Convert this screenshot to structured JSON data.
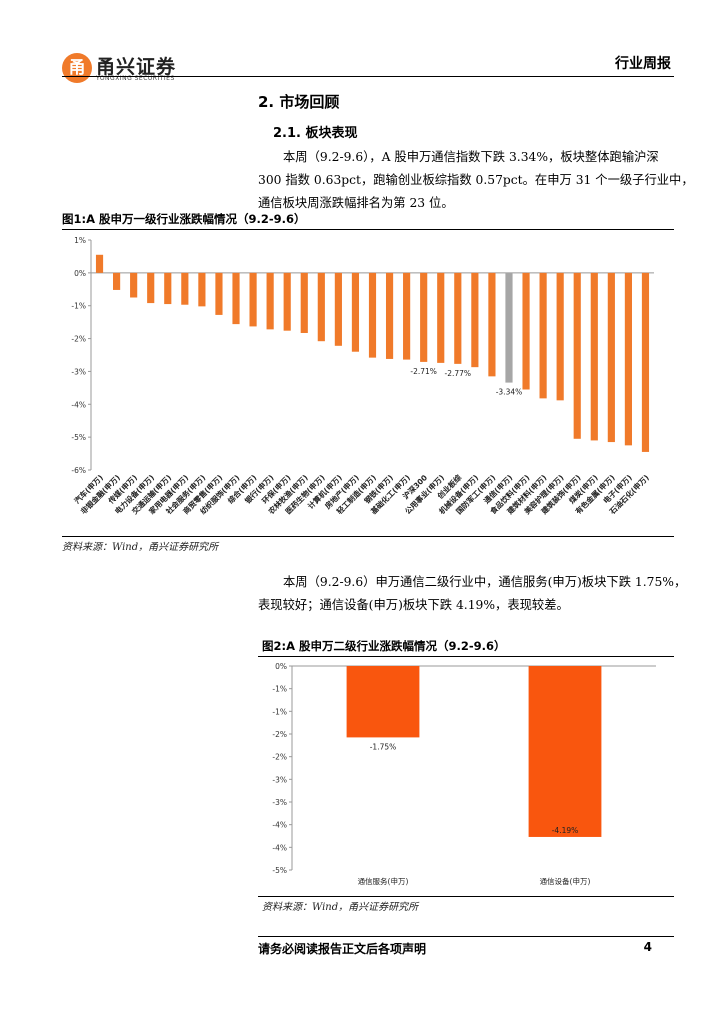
{
  "header": {
    "logo_mark": "甬",
    "brand_name": "甬兴证券",
    "brand_en": "YONGXING SECURITIES",
    "report_type": "行业周报"
  },
  "section": {
    "title": "2. 市场回顾",
    "subtitle": "2.1. 板块表现",
    "para1": [
      "本周（9.2-9.6），A 股申万通信指数下跌 3.34%，板块整体跑输沪深",
      "300 指数 0.63pct，跑输创业板综指数 0.57pct。在申万 31 个一级子行业中，",
      "通信板块周涨跌幅排名为第 23 位。"
    ],
    "para2": [
      "本周（9.2-9.6）申万通信二级行业中，通信服务(申万)板块下跌 1.75%，",
      "表现较好；通信设备(申万)板块下跌 4.19%，表现较差。"
    ]
  },
  "figure1": {
    "title": "图1:A 股申万一级行业涨跌幅情况（9.2-9.6）",
    "source": "资料来源：Wind，甬兴证券研究所"
  },
  "figure2": {
    "title": "图2:A 股申万二级行业涨跌幅情况（9.2-9.6）",
    "source": "资料来源：Wind，甬兴证券研究所"
  },
  "footer": {
    "note": "请务必阅读报告正文后各项声明",
    "page": "4"
  },
  "chart_data": [
    {
      "type": "bar",
      "title": "",
      "ylim": [
        -6,
        1
      ],
      "yticks": [
        "1%",
        "0%",
        "-1%",
        "-2%",
        "-3%",
        "-4%",
        "-5%",
        "-6%"
      ],
      "categories": [
        "汽车(申万)",
        "非银金融(申万)",
        "传媒(申万)",
        "电力设备(申万)",
        "交通运输(申万)",
        "家用电器(申万)",
        "社会服务(申万)",
        "商贸零售(申万)",
        "纺织服饰(申万)",
        "综合(申万)",
        "银行(申万)",
        "环保(申万)",
        "农林牧渔(申万)",
        "医药生物(申万)",
        "计算机(申万)",
        "房地产(申万)",
        "轻工制造(申万)",
        "钢铁(申万)",
        "基础化工(申万)",
        "沪深300",
        "公用事业(申万)",
        "创业板综",
        "机械设备(申万)",
        "国防军工(申万)",
        "通信(申万)",
        "食品饮料(申万)",
        "建筑材料(申万)",
        "美容护理(申万)",
        "建筑装饰(申万)",
        "煤炭(申万)",
        "有色金属(申万)",
        "电子(申万)",
        "石油石化(申万)"
      ],
      "values": [
        0.55,
        -0.52,
        -0.75,
        -0.92,
        -0.95,
        -0.97,
        -1.02,
        -1.28,
        -1.56,
        -1.63,
        -1.72,
        -1.76,
        -1.83,
        -2.08,
        -2.22,
        -2.4,
        -2.58,
        -2.62,
        -2.64,
        -2.71,
        -2.74,
        -2.77,
        -2.87,
        -3.15,
        -3.34,
        -3.55,
        -3.82,
        -3.88,
        -5.05,
        -5.1,
        -5.15,
        -5.25,
        -5.45
      ],
      "highlight_index": 24,
      "highlight_color": "#a6a6a6",
      "bar_color": "#f07a2a",
      "data_labels": [
        {
          "index": 19,
          "text": "-2.71%"
        },
        {
          "index": 21,
          "text": "-2.77%"
        },
        {
          "index": 24,
          "text": "-3.34%"
        }
      ]
    },
    {
      "type": "bar",
      "title": "",
      "ylim": [
        -5,
        0
      ],
      "yticks": [
        "0%",
        "-1%",
        "-1%",
        "-2%",
        "-2%",
        "-3%",
        "-3%",
        "-4%",
        "-4%",
        "-5%"
      ],
      "categories": [
        "通信服务(申万)",
        "通信设备(申万)"
      ],
      "values": [
        -1.75,
        -4.19
      ],
      "bar_color": "#f9560e",
      "data_labels": [
        "-1.75%",
        "-4.19%"
      ]
    }
  ]
}
